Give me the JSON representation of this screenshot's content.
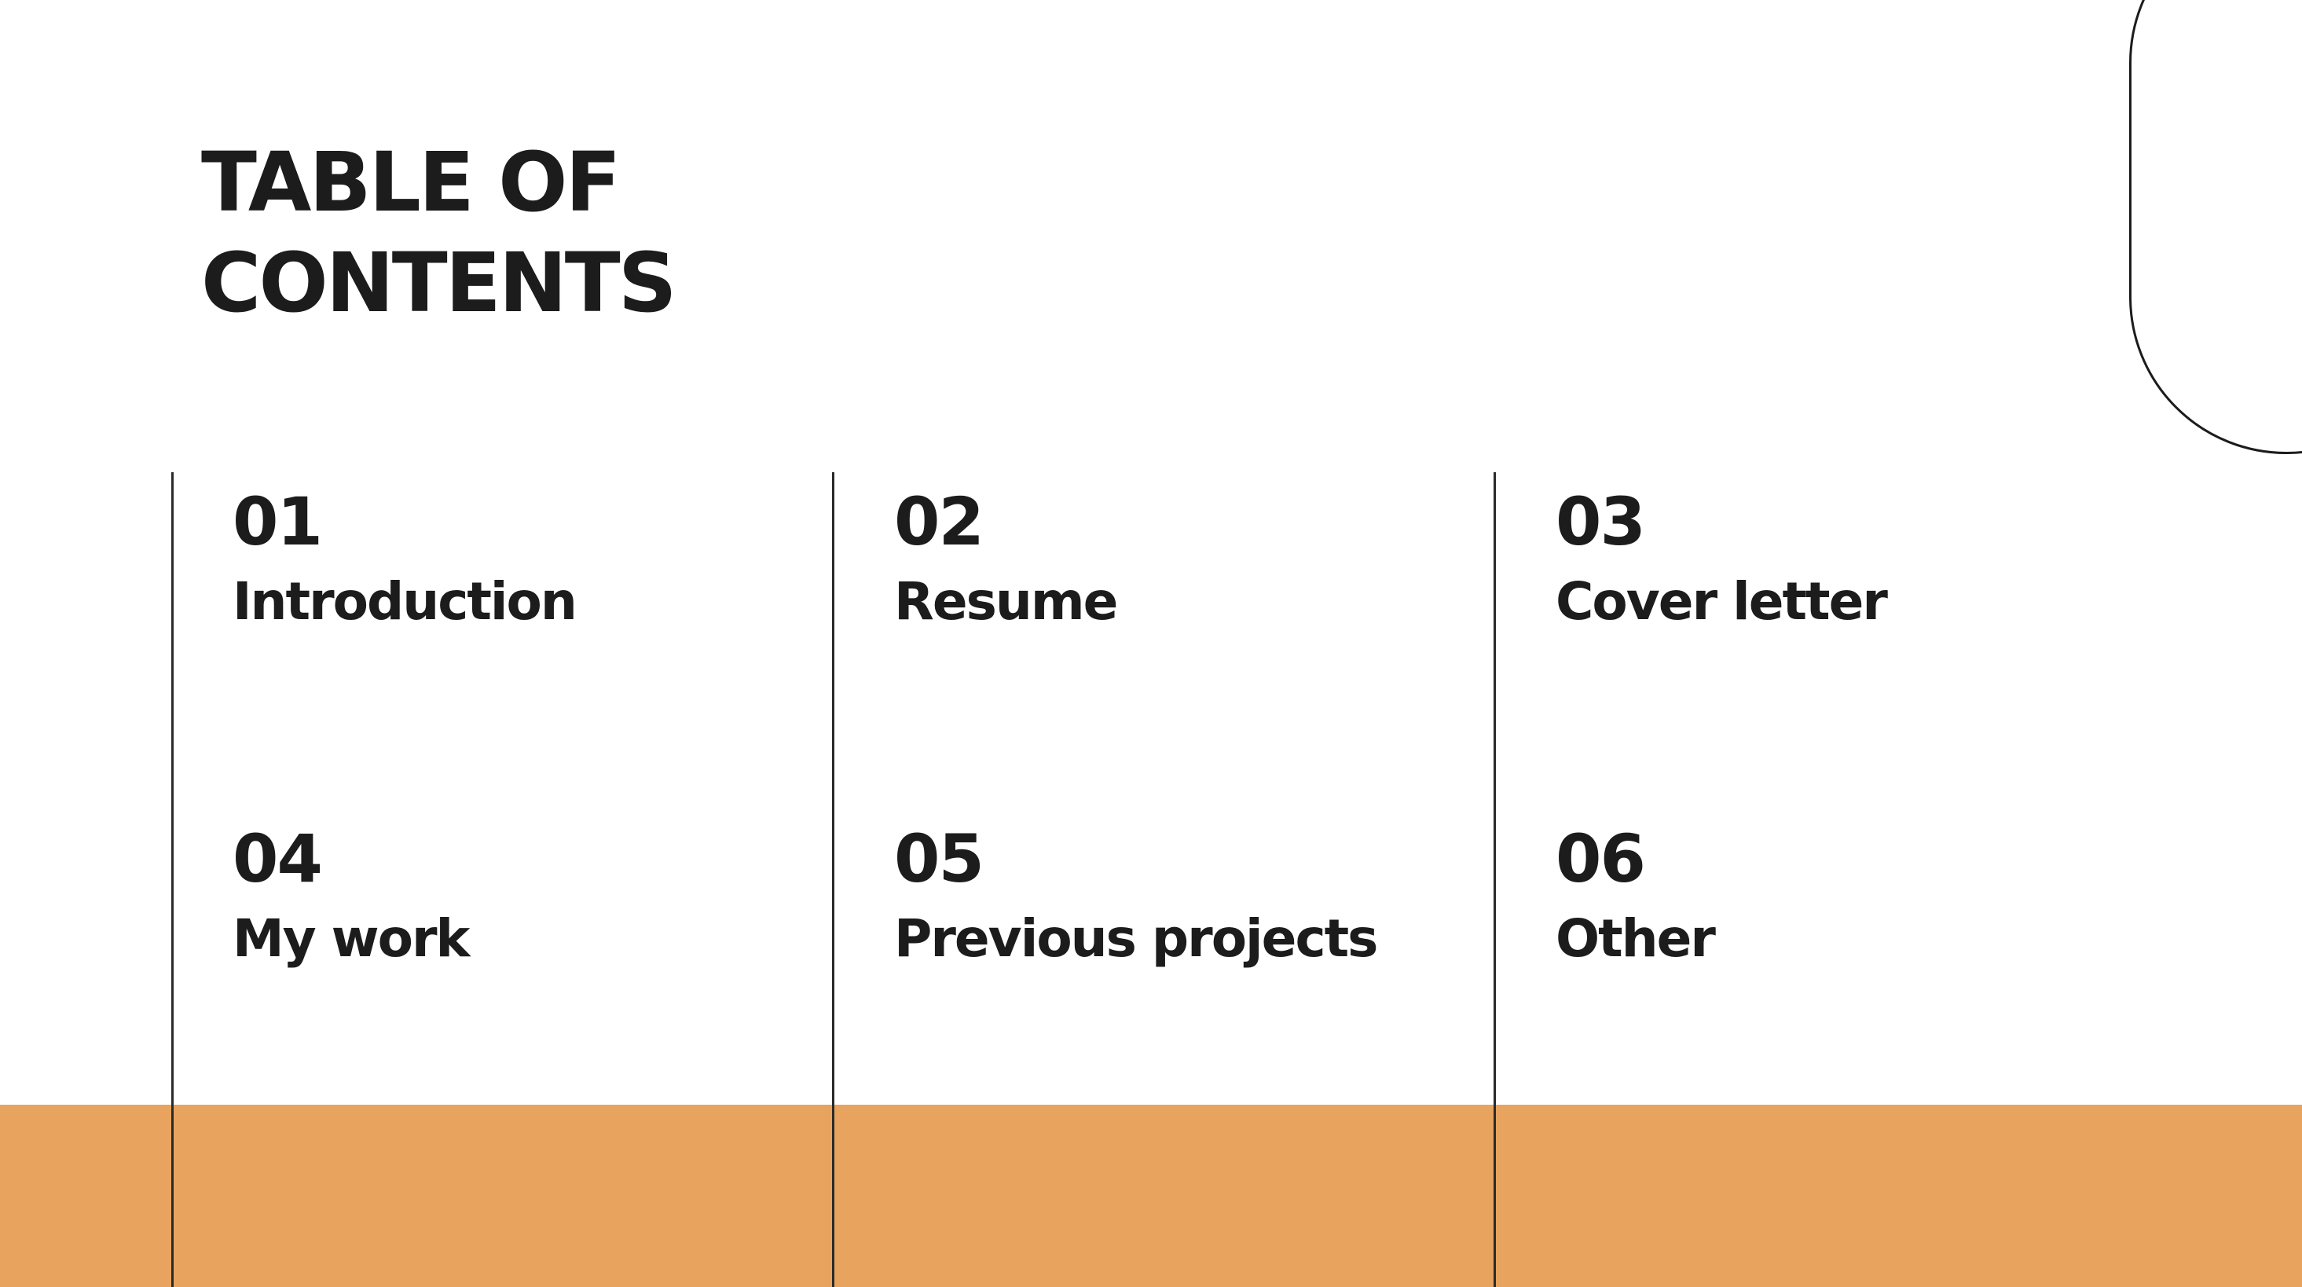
{
  "slide": {
    "title_line1": "TABLE OF",
    "title_line2": "CONTENTS",
    "accent_color": "#e8a35f",
    "text_color": "#1c1c1c",
    "items": [
      {
        "number": "01",
        "label": "Introduction"
      },
      {
        "number": "02",
        "label": "Resume"
      },
      {
        "number": "03",
        "label": "Cover letter"
      },
      {
        "number": "04",
        "label": "My work"
      },
      {
        "number": "05",
        "label": "Previous projects"
      },
      {
        "number": "06",
        "label": "Other"
      }
    ]
  }
}
